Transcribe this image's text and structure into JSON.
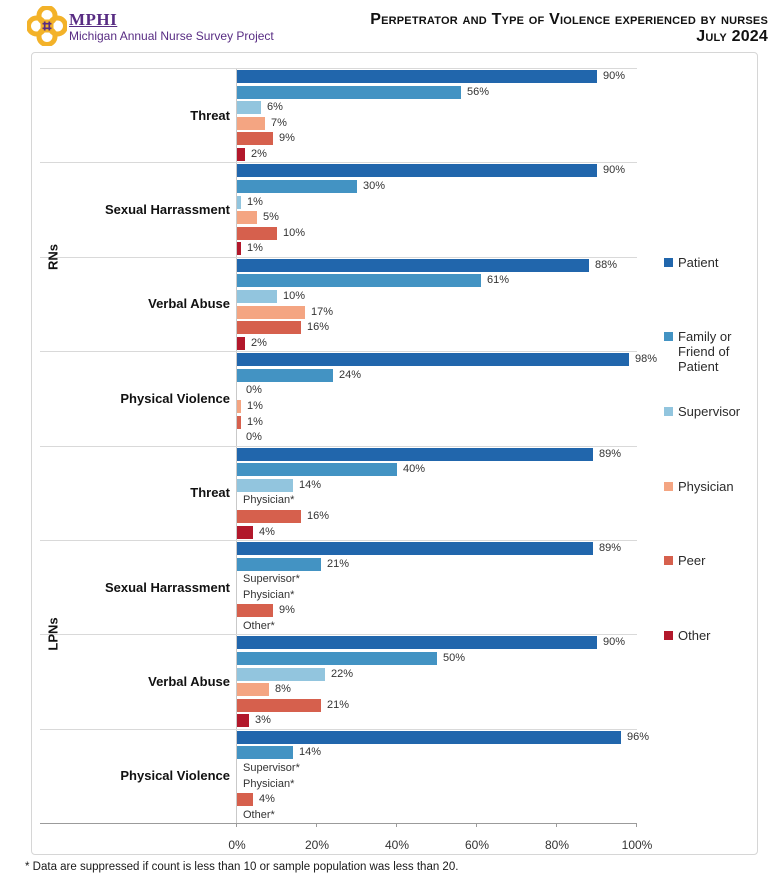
{
  "header": {
    "logo_text": "MPHI",
    "logo_subtitle": "Michigan Annual Nurse Survey Project",
    "title_line1": "Perpetrator and Type of Violence experienced by nurses",
    "title_line2": "July 2024"
  },
  "footnote": "* Data are suppressed if count is less than 10 or sample population was less than 20.",
  "colors": {
    "brand_purple": "#582C83",
    "logo_gold": "#F3B229",
    "separator_gray": "#D9D9D9",
    "axis_gray": "#9B9B9B"
  },
  "chart_data": {
    "type": "bar",
    "orientation": "horizontal",
    "title": "Perpetrator and Type of Violence experienced by nurses",
    "subtitle": "July 2024",
    "xlabel": "",
    "ylabel": "",
    "xlim": [
      0,
      100
    ],
    "x_ticks": [
      "0%",
      "20%",
      "40%",
      "60%",
      "80%",
      "100%"
    ],
    "grid": false,
    "legend_position": "right",
    "legend": [
      {
        "name": "Patient",
        "color": "#2166AC"
      },
      {
        "name": "Family or Friend of Patient",
        "color": "#4393C3"
      },
      {
        "name": "Supervisor",
        "color": "#92C5DE"
      },
      {
        "name": "Physician",
        "color": "#F4A582"
      },
      {
        "name": "Peer",
        "color": "#D6604D"
      },
      {
        "name": "Other",
        "color": "#B2182B"
      }
    ],
    "suppression_note": "Entries shown as text with * are suppressed values",
    "groups": [
      {
        "group": "RNs",
        "categories": [
          {
            "label": "Threat",
            "values": [
              90,
              56,
              6,
              7,
              9,
              2
            ]
          },
          {
            "label": "Sexual Harrassment",
            "values": [
              90,
              30,
              1,
              5,
              10,
              1
            ]
          },
          {
            "label": "Verbal Abuse",
            "values": [
              88,
              61,
              10,
              17,
              16,
              2
            ]
          },
          {
            "label": "Physical Violence",
            "values": [
              98,
              24,
              0,
              1,
              1,
              0
            ]
          }
        ]
      },
      {
        "group": "LPNs",
        "categories": [
          {
            "label": "Threat",
            "values": [
              89,
              40,
              14,
              "Physician*",
              16,
              4
            ]
          },
          {
            "label": "Sexual Harrassment",
            "values": [
              89,
              21,
              "Supervisor*",
              "Physician*",
              9,
              "Other*"
            ]
          },
          {
            "label": "Verbal Abuse",
            "values": [
              90,
              50,
              22,
              8,
              21,
              3
            ]
          },
          {
            "label": "Physical Violence",
            "values": [
              96,
              14,
              "Supervisor*",
              "Physician*",
              4,
              "Other*"
            ]
          }
        ]
      }
    ]
  }
}
